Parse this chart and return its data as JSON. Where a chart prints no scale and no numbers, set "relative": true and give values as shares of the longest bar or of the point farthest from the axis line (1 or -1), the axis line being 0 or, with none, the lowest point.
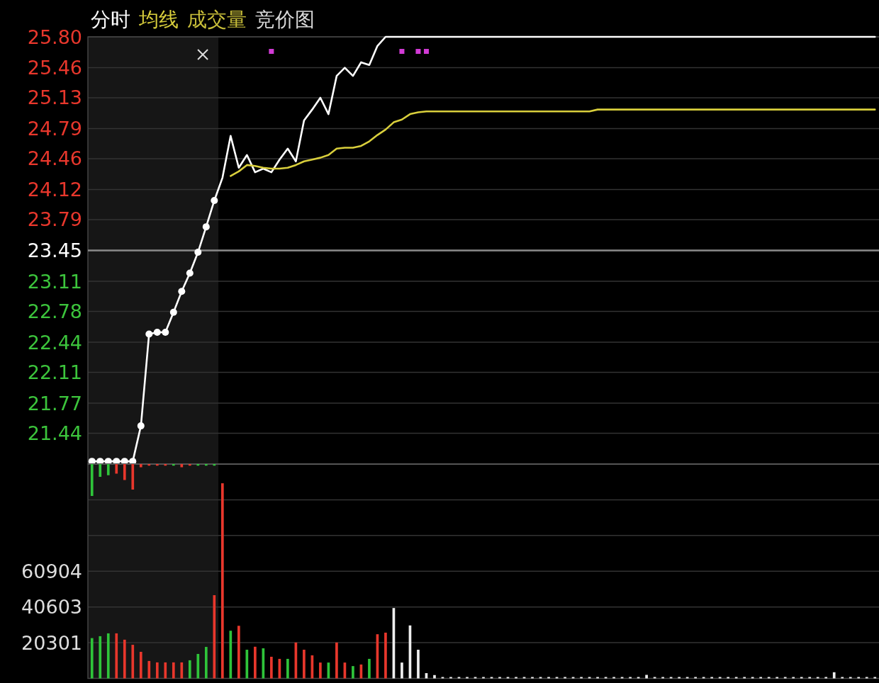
{
  "chart_data": [
    {
      "type": "line",
      "categories": [
        null,
        null,
        null,
        null,
        null,
        null,
        null,
        null,
        null,
        null,
        null,
        null,
        null,
        null,
        null,
        null,
        null,
        null,
        null,
        null,
        null,
        null,
        null,
        null,
        null,
        null,
        null,
        null,
        null,
        null,
        null,
        null,
        null,
        null,
        null,
        null,
        null,
        null,
        null,
        null,
        null,
        null,
        null,
        null,
        null,
        null,
        null,
        null,
        null,
        null,
        null,
        null,
        null,
        null,
        null,
        null,
        null,
        null,
        null,
        null,
        null,
        null,
        null,
        null,
        null,
        null,
        null,
        null,
        null,
        null,
        null,
        null,
        null,
        null,
        null,
        null,
        null,
        null,
        null,
        null,
        null,
        null,
        null,
        null,
        null,
        null,
        null,
        null,
        null,
        null,
        null,
        null,
        null,
        null,
        null,
        null,
        null
      ],
      "ylim": [
        21.1,
        25.8
      ],
      "yticks": [
        {
          "value": 25.8,
          "label": "25.80"
        },
        25.46,
        25.13,
        24.79,
        24.46,
        24.12,
        23.79,
        23.45,
        23.11,
        22.78,
        22.44,
        22.11,
        21.77,
        21.44
      ],
      "grid": "y",
      "legend": "top left",
      "tick_labels": "y",
      "ref_lines": [
        {
          "axis": "y",
          "value": 23.45,
          "color": "#8a8a8a"
        }
      ],
      "annotations": [
        "成交量",
        "竞价图"
      ],
      "series": [
        {
          "color": "#ffffff",
          "marker": "circle",
          "values": [
            21.13,
            21.13,
            21.13,
            21.13,
            21.13,
            21.13,
            21.52,
            22.53,
            22.55,
            22.55,
            22.77,
            23.0,
            23.2,
            23.43,
            23.71,
            24.0,
            null,
            null,
            null,
            null,
            null,
            null,
            null,
            null,
            null,
            null,
            null,
            null,
            null,
            null,
            null,
            null,
            null,
            null,
            null,
            null,
            null,
            null,
            null,
            null,
            null,
            null,
            null,
            null,
            null,
            null,
            null,
            null,
            null,
            null,
            null,
            null,
            null,
            null,
            null,
            null,
            null,
            null,
            null,
            null,
            null,
            null,
            null,
            null,
            null,
            null,
            null,
            null,
            null,
            null,
            null,
            null,
            null,
            null,
            null,
            null,
            null,
            null,
            null,
            null,
            null,
            null,
            null,
            null,
            null,
            null,
            null,
            null,
            null,
            null,
            null,
            null,
            null,
            null,
            null,
            null,
            null
          ]
        },
        {
          "name": "分时",
          "color": "#ffffff",
          "values": [
            null,
            null,
            null,
            null,
            null,
            null,
            null,
            null,
            null,
            null,
            null,
            null,
            null,
            null,
            null,
            24.0,
            24.25,
            24.71,
            24.36,
            24.5,
            24.31,
            24.35,
            24.31,
            24.45,
            24.57,
            24.43,
            24.88,
            25.0,
            25.13,
            24.95,
            25.37,
            25.46,
            25.37,
            25.52,
            25.49,
            25.7,
            25.8,
            25.8,
            25.8,
            25.8,
            25.8,
            25.8,
            25.8,
            25.8,
            25.8,
            25.8,
            25.8,
            25.8,
            25.8,
            25.8,
            25.8,
            25.8,
            25.8,
            25.8,
            25.8,
            25.8,
            25.8,
            25.8,
            25.8,
            25.8,
            25.8,
            25.8,
            25.8,
            25.8,
            25.8,
            25.8,
            25.8,
            25.8,
            25.8,
            25.8,
            25.8,
            25.8,
            25.8,
            25.8,
            25.8,
            25.8,
            25.8,
            25.8,
            25.8,
            25.8,
            25.8,
            25.8,
            25.8,
            25.8,
            25.8,
            25.8,
            25.8,
            25.8,
            25.8,
            25.8,
            25.8,
            25.8,
            25.8,
            25.8,
            25.8,
            25.8,
            25.8
          ]
        },
        {
          "name": "均线",
          "color": "#d9cf3c",
          "values": [
            null,
            null,
            null,
            null,
            null,
            null,
            null,
            null,
            null,
            null,
            null,
            null,
            null,
            null,
            null,
            null,
            null,
            24.27,
            24.32,
            24.39,
            24.38,
            24.36,
            24.35,
            24.35,
            24.36,
            24.39,
            24.43,
            24.45,
            24.47,
            24.5,
            24.57,
            24.58,
            24.58,
            24.6,
            24.65,
            24.72,
            24.78,
            24.86,
            24.89,
            24.95,
            24.97,
            24.98,
            24.98,
            24.98,
            24.98,
            24.98,
            24.98,
            24.98,
            24.98,
            24.98,
            24.98,
            24.98,
            24.98,
            24.98,
            24.98,
            24.98,
            24.98,
            24.98,
            24.98,
            24.98,
            24.98,
            24.98,
            25.0,
            25.0,
            25.0,
            25.0,
            25.0,
            25.0,
            25.0,
            25.0,
            25.0,
            25.0,
            25.0,
            25.0,
            25.0,
            25.0,
            25.0,
            25.0,
            25.0,
            25.0,
            25.0,
            25.0,
            25.0,
            25.0,
            25.0,
            25.0,
            25.0,
            25.0,
            25.0,
            25.0,
            25.0,
            25.0,
            25.0,
            25.0,
            25.0,
            25.0,
            25.0
          ]
        },
        {
          "type": "scatter",
          "color": "#d23bd6",
          "marker": "square",
          "values": [
            null,
            null,
            null,
            null,
            null,
            null,
            null,
            null,
            null,
            null,
            null,
            null,
            null,
            null,
            null,
            null,
            null,
            null,
            null,
            null,
            null,
            null,
            25.64,
            null,
            null,
            null,
            null,
            null,
            null,
            null,
            null,
            null,
            null,
            null,
            null,
            null,
            null,
            null,
            25.64,
            null,
            25.64,
            25.64,
            null,
            null,
            null,
            null,
            null,
            null,
            null,
            null,
            null,
            null,
            null,
            null,
            null,
            null,
            null,
            null,
            null,
            null,
            null,
            null,
            null,
            null,
            null,
            null,
            null,
            null,
            null,
            null,
            null,
            null,
            null,
            null,
            null,
            null,
            null,
            null,
            null,
            null,
            null,
            null,
            null,
            null,
            null,
            null,
            null,
            null,
            null,
            null,
            null,
            null,
            null,
            null,
            null,
            null,
            null
          ]
        }
      ]
    },
    {
      "type": "bar",
      "categories": [
        null,
        null,
        null,
        null,
        null,
        null,
        null,
        null,
        null,
        null,
        null,
        null,
        null,
        null,
        null,
        null,
        null,
        null,
        null,
        null,
        null,
        null,
        null,
        null,
        null,
        null,
        null,
        null,
        null,
        null,
        null,
        null,
        null,
        null,
        null,
        null,
        null,
        null,
        null,
        null,
        null,
        null,
        null,
        null,
        null,
        null,
        null,
        null,
        null,
        null,
        null,
        null,
        null,
        null,
        null,
        null,
        null,
        null,
        null,
        null,
        null,
        null,
        null,
        null,
        null,
        null,
        null,
        null,
        null,
        null,
        null,
        null,
        null,
        null,
        null,
        null,
        null,
        null,
        null,
        null,
        null,
        null,
        null,
        null,
        null,
        null,
        null,
        null,
        null,
        null,
        null,
        null,
        null,
        null,
        null,
        null,
        null
      ],
      "ylim": [
        0,
        121806
      ],
      "yticks": [
        20301,
        40603,
        60904,
        {
          "value": 81206,
          "label": null
        },
        {
          "value": 101507,
          "label": null
        }
      ],
      "grid": "y",
      "tick_labels": "y",
      "values": [
        22900,
        24000,
        25600,
        25600,
        22000,
        19100,
        15100,
        9900,
        9100,
        9100,
        9100,
        9100,
        10300,
        13900,
        17900,
        47300,
        110900,
        27100,
        29900,
        16300,
        18000,
        17100,
        12300,
        11100,
        11100,
        20400,
        16300,
        13100,
        9000,
        9000,
        20400,
        9000,
        7000,
        7900,
        11100,
        25100,
        26000,
        40000,
        9000,
        30100,
        16300,
        3000,
        1900,
        800,
        800,
        800,
        800,
        800,
        800,
        800,
        800,
        800,
        800,
        800,
        800,
        800,
        800,
        800,
        800,
        800,
        800,
        800,
        800,
        800,
        800,
        800,
        800,
        800,
        2000,
        800,
        800,
        800,
        800,
        800,
        800,
        800,
        800,
        800,
        800,
        800,
        800,
        800,
        800,
        800,
        800,
        800,
        800,
        800,
        800,
        800,
        800,
        3500,
        800,
        800,
        800,
        800,
        800
      ],
      "colors": [
        "#2fc43a",
        "#2fc43a",
        "#2fc43a",
        "#e8372c",
        "#e8372c",
        "#e8372c",
        "#e8372c",
        "#e8372c",
        "#e8372c",
        "#e8372c",
        "#e8372c",
        "#e8372c",
        "#2fc43a",
        "#2fc43a",
        "#2fc43a",
        "#e8372c",
        "#e8372c",
        "#2fc43a",
        "#e8372c",
        "#2fc43a",
        "#e8372c",
        "#2fc43a",
        "#e8372c",
        "#e8372c",
        "#2fc43a",
        "#e8372c",
        "#e8372c",
        "#e8372c",
        "#e8372c",
        "#2fc43a",
        "#e8372c",
        "#e8372c",
        "#2fc43a",
        "#e8372c",
        "#2fc43a",
        "#e8372c",
        "#e8372c",
        "#eeeeee",
        "#eeeeee",
        "#eeeeee",
        "#eeeeee",
        "#eeeeee",
        "#eeeeee",
        "#eeeeee",
        "#eeeeee",
        "#eeeeee",
        "#eeeeee",
        "#eeeeee",
        "#eeeeee",
        "#eeeeee",
        "#eeeeee",
        "#eeeeee",
        "#eeeeee",
        "#eeeeee",
        "#eeeeee",
        "#eeeeee",
        "#eeeeee",
        "#eeeeee",
        "#eeeeee",
        "#eeeeee",
        "#eeeeee",
        "#eeeeee",
        "#eeeeee",
        "#eeeeee",
        "#eeeeee",
        "#eeeeee",
        "#eeeeee",
        "#eeeeee",
        "#eeeeee",
        "#eeeeee",
        "#eeeeee",
        "#eeeeee",
        "#eeeeee",
        "#eeeeee",
        "#eeeeee",
        "#eeeeee",
        "#eeeeee",
        "#eeeeee",
        "#eeeeee",
        "#eeeeee",
        "#eeeeee",
        "#eeeeee",
        "#eeeeee",
        "#eeeeee",
        "#eeeeee",
        "#eeeeee",
        "#eeeeee",
        "#eeeeee",
        "#eeeeee",
        "#eeeeee",
        "#eeeeee",
        "#eeeeee",
        "#eeeeee",
        "#eeeeee",
        "#eeeeee",
        "#eeeeee",
        "#eeeeee"
      ]
    },
    {
      "type": "bar",
      "relative": true,
      "categories": [
        null,
        null,
        null,
        null,
        null,
        null,
        null,
        null,
        null,
        null,
        null,
        null,
        null,
        null,
        null,
        null,
        null,
        null,
        null,
        null,
        null,
        null,
        null,
        null,
        null,
        null,
        null,
        null,
        null,
        null,
        null,
        null,
        null,
        null,
        null,
        null,
        null,
        null,
        null,
        null,
        null,
        null,
        null,
        null,
        null,
        null,
        null,
        null,
        null,
        null,
        null,
        null,
        null,
        null,
        null,
        null,
        null,
        null,
        null,
        null,
        null,
        null,
        null,
        null,
        null,
        null,
        null,
        null,
        null,
        null,
        null,
        null,
        null,
        null,
        null,
        null,
        null,
        null,
        null,
        null,
        null,
        null,
        null,
        null,
        null,
        null,
        null,
        null,
        null,
        null,
        null,
        null,
        null,
        null,
        null,
        null,
        null
      ],
      "values": [
        -1,
        -0.4,
        -0.35,
        -0.3,
        -0.5,
        -0.8,
        -0.1,
        -0.05,
        -0.05,
        -0.05,
        -0.05,
        -0.1,
        -0.05,
        -0.05,
        -0.05,
        -0.05,
        null,
        null,
        null,
        null,
        null,
        null,
        null,
        null,
        null,
        null,
        null,
        null,
        null,
        null,
        null,
        null,
        null,
        null,
        null,
        null,
        null,
        null,
        null,
        null,
        null,
        null,
        null,
        null,
        null,
        null,
        null,
        null,
        null,
        null,
        null,
        null,
        null,
        null,
        null,
        null,
        null,
        null,
        null,
        null,
        null,
        null,
        null,
        null,
        null,
        null,
        null,
        null,
        null,
        null,
        null,
        null,
        null,
        null,
        null,
        null,
        null,
        null,
        null,
        null,
        null,
        null,
        null,
        null,
        null,
        null,
        null,
        null,
        null,
        null,
        null,
        null,
        null,
        null,
        null,
        null,
        null
      ],
      "colors": [
        "#2fc43a",
        "#2fc43a",
        "#2fc43a",
        "#e8372c",
        "#e8372c",
        "#e8372c",
        "#e8372c",
        "#e8372c",
        "#e8372c",
        "#e8372c",
        "#2fc43a",
        "#e8372c",
        "#e8372c",
        "#2fc43a",
        "#2fc43a",
        "#2fc43a",
        null,
        null,
        null,
        null,
        null,
        null,
        null,
        null,
        null,
        null,
        null,
        null,
        null,
        null,
        null,
        null,
        null,
        null,
        null,
        null,
        null,
        null,
        null,
        null,
        null,
        null,
        null,
        null,
        null,
        null,
        null,
        null,
        null,
        null,
        null,
        null,
        null,
        null,
        null,
        null,
        null,
        null,
        null,
        null,
        null,
        null,
        null,
        null,
        null,
        null,
        null,
        null,
        null,
        null,
        null,
        null,
        null,
        null,
        null,
        null,
        null,
        null,
        null,
        null,
        null,
        null,
        null,
        null,
        null,
        null,
        null,
        null,
        null,
        null,
        null,
        null,
        null,
        null,
        null,
        null,
        null
      ]
    }
  ]
}
